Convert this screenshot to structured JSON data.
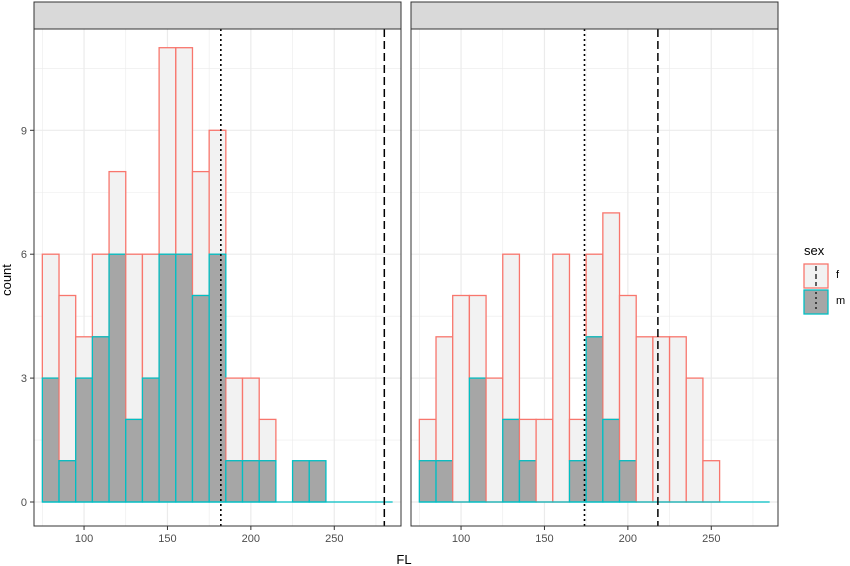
{
  "chart_data": {
    "type": "bar",
    "subtype": "faceted-stacked-histogram",
    "xlabel": "FL",
    "ylabel": "count",
    "x_ticks": [
      100,
      150,
      200,
      250
    ],
    "y_ticks": [
      0,
      3,
      6,
      9
    ],
    "xlim": [
      70,
      290
    ],
    "ylim": [
      0,
      11.7
    ],
    "grid": true,
    "legend": {
      "title": "sex",
      "placement": "right",
      "entries": [
        {
          "label": "f",
          "outline": "#F8766D",
          "fill": "#F2F2F2"
        },
        {
          "label": "m",
          "outline": "#00BFC4",
          "fill": "#A6A6A6"
        }
      ]
    },
    "colors": {
      "f_outline": "#F8766D",
      "m_outline": "#00BFC4",
      "f_fill": "#F2F2F2",
      "m_fill": "#A6A6A6",
      "strip": "#D9D9D9",
      "grid": "#EBEBEB"
    },
    "panels": [
      {
        "strip_label": "",
        "bins": [
          {
            "x0": 75,
            "x1": 85,
            "m": 3,
            "f": 3
          },
          {
            "x0": 85,
            "x1": 95,
            "m": 1,
            "f": 4
          },
          {
            "x0": 95,
            "x1": 105,
            "m": 3,
            "f": 1
          },
          {
            "x0": 105,
            "x1": 115,
            "m": 4,
            "f": 2
          },
          {
            "x0": 115,
            "x1": 125,
            "m": 6,
            "f": 2
          },
          {
            "x0": 125,
            "x1": 135,
            "m": 2,
            "f": 4
          },
          {
            "x0": 135,
            "x1": 145,
            "m": 3,
            "f": 3
          },
          {
            "x0": 145,
            "x1": 155,
            "m": 6,
            "f": 5
          },
          {
            "x0": 155,
            "x1": 165,
            "m": 6,
            "f": 5
          },
          {
            "x0": 165,
            "x1": 175,
            "m": 5,
            "f": 3
          },
          {
            "x0": 175,
            "x1": 185,
            "m": 6,
            "f": 3
          },
          {
            "x0": 185,
            "x1": 195,
            "m": 1,
            "f": 2
          },
          {
            "x0": 195,
            "x1": 205,
            "m": 1,
            "f": 2
          },
          {
            "x0": 205,
            "x1": 215,
            "m": 1,
            "f": 1
          },
          {
            "x0": 215,
            "x1": 225,
            "m": 0,
            "f": 0
          },
          {
            "x0": 225,
            "x1": 235,
            "m": 1,
            "f": 0
          },
          {
            "x0": 235,
            "x1": 245,
            "m": 1,
            "f": 0
          },
          {
            "x0": 245,
            "x1": 255,
            "m": 0,
            "f": 0
          },
          {
            "x0": 255,
            "x1": 265,
            "m": 0,
            "f": 0
          },
          {
            "x0": 265,
            "x1": 275,
            "m": 0,
            "f": 0
          },
          {
            "x0": 275,
            "x1": 285,
            "m": 0,
            "f": 0
          }
        ],
        "vlines": [
          {
            "x": 182,
            "style": "dotted"
          },
          {
            "x": 280,
            "style": "dashed"
          }
        ]
      },
      {
        "strip_label": "",
        "bins": [
          {
            "x0": 75,
            "x1": 85,
            "m": 1,
            "f": 1
          },
          {
            "x0": 85,
            "x1": 95,
            "m": 1,
            "f": 3
          },
          {
            "x0": 95,
            "x1": 105,
            "m": 0,
            "f": 5
          },
          {
            "x0": 105,
            "x1": 115,
            "m": 3,
            "f": 2
          },
          {
            "x0": 115,
            "x1": 125,
            "m": 0,
            "f": 3
          },
          {
            "x0": 125,
            "x1": 135,
            "m": 2,
            "f": 4
          },
          {
            "x0": 135,
            "x1": 145,
            "m": 1,
            "f": 1
          },
          {
            "x0": 145,
            "x1": 155,
            "m": 0,
            "f": 2
          },
          {
            "x0": 155,
            "x1": 165,
            "m": 0,
            "f": 6
          },
          {
            "x0": 165,
            "x1": 175,
            "m": 1,
            "f": 1
          },
          {
            "x0": 175,
            "x1": 185,
            "m": 4,
            "f": 2
          },
          {
            "x0": 185,
            "x1": 195,
            "m": 2,
            "f": 5
          },
          {
            "x0": 195,
            "x1": 205,
            "m": 1,
            "f": 4
          },
          {
            "x0": 205,
            "x1": 215,
            "m": 0,
            "f": 4
          },
          {
            "x0": 215,
            "x1": 225,
            "m": 0,
            "f": 4
          },
          {
            "x0": 225,
            "x1": 235,
            "m": 0,
            "f": 4
          },
          {
            "x0": 235,
            "x1": 245,
            "m": 0,
            "f": 3
          },
          {
            "x0": 245,
            "x1": 255,
            "m": 0,
            "f": 1
          },
          {
            "x0": 255,
            "x1": 265,
            "m": 0,
            "f": 0
          },
          {
            "x0": 265,
            "x1": 275,
            "m": 0,
            "f": 0
          },
          {
            "x0": 275,
            "x1": 285,
            "m": 0,
            "f": 0
          }
        ],
        "vlines": [
          {
            "x": 174,
            "style": "dotted"
          },
          {
            "x": 218,
            "style": "dashed"
          }
        ]
      }
    ]
  }
}
